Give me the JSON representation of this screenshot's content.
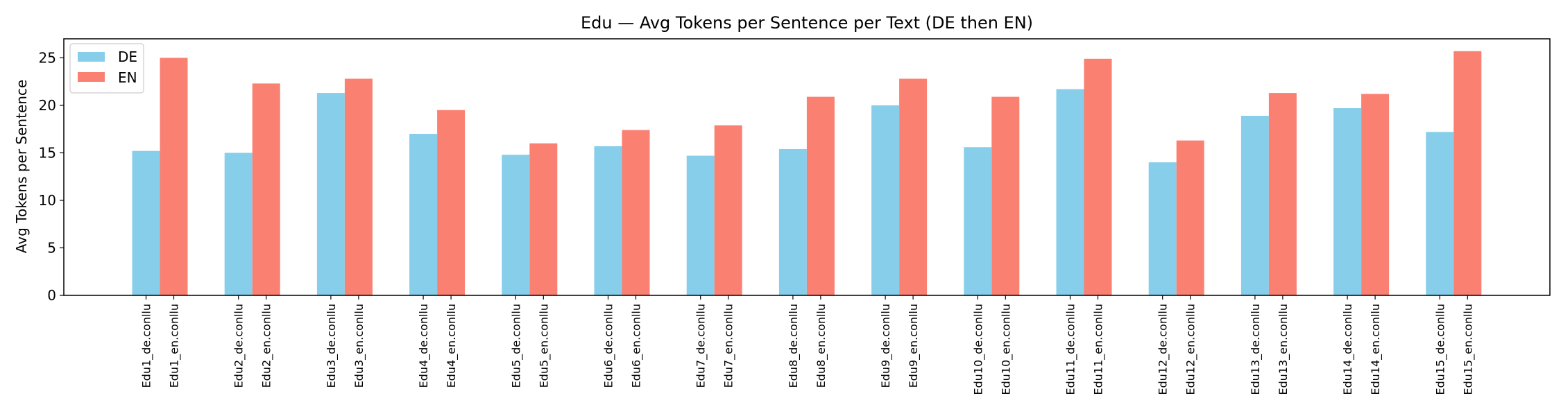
{
  "chart_data": {
    "type": "bar",
    "title": "Edu — Avg Tokens per Sentence per Text (DE then EN)",
    "xlabel": "",
    "ylabel": "Avg Tokens per Sentence",
    "ylim": [
      0,
      27
    ],
    "yticks": [
      0,
      5,
      10,
      15,
      20,
      25
    ],
    "grid": false,
    "legend_position": "top-left",
    "categories": [
      "Edu1",
      "Edu2",
      "Edu3",
      "Edu4",
      "Edu5",
      "Edu6",
      "Edu7",
      "Edu8",
      "Edu9",
      "Edu10",
      "Edu11",
      "Edu12",
      "Edu13",
      "Edu14",
      "Edu15"
    ],
    "tick_labels": [
      [
        "Edu1_de.conllu",
        "Edu1_en.conllu"
      ],
      [
        "Edu2_de.conllu",
        "Edu2_en.conllu"
      ],
      [
        "Edu3_de.conllu",
        "Edu3_en.conllu"
      ],
      [
        "Edu4_de.conllu",
        "Edu4_en.conllu"
      ],
      [
        "Edu5_de.conllu",
        "Edu5_en.conllu"
      ],
      [
        "Edu6_de.conllu",
        "Edu6_en.conllu"
      ],
      [
        "Edu7_de.conllu",
        "Edu7_en.conllu"
      ],
      [
        "Edu8_de.conllu",
        "Edu8_en.conllu"
      ],
      [
        "Edu9_de.conllu",
        "Edu9_en.conllu"
      ],
      [
        "Edu10_de.conllu",
        "Edu10_en.conllu"
      ],
      [
        "Edu11_de.conllu",
        "Edu11_en.conllu"
      ],
      [
        "Edu12_de.conllu",
        "Edu12_en.conllu"
      ],
      [
        "Edu13_de.conllu",
        "Edu13_en.conllu"
      ],
      [
        "Edu14_de.conllu",
        "Edu14_en.conllu"
      ],
      [
        "Edu15_de.conllu",
        "Edu15_en.conllu"
      ]
    ],
    "series": [
      {
        "name": "DE",
        "color": "#87ceeb",
        "values": [
          15.2,
          15.0,
          21.3,
          17.0,
          14.8,
          15.7,
          14.7,
          15.4,
          20.0,
          15.6,
          21.7,
          14.0,
          18.9,
          19.7,
          17.2
        ]
      },
      {
        "name": "EN",
        "color": "#fa8072",
        "values": [
          25.0,
          22.3,
          22.8,
          19.5,
          16.0,
          17.4,
          17.9,
          20.9,
          22.8,
          20.9,
          24.9,
          16.3,
          21.3,
          21.2,
          25.7
        ]
      }
    ]
  }
}
